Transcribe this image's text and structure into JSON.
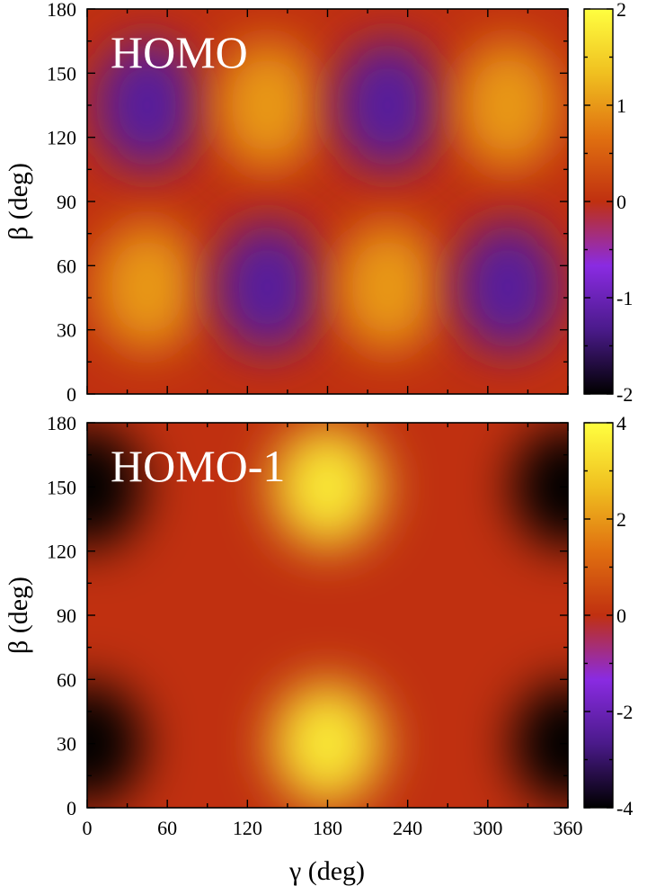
{
  "chart_data": [
    {
      "type": "heatmap",
      "title": "HOMO",
      "xlabel": "",
      "ylabel": "β  (deg)",
      "xlim": [
        0,
        360
      ],
      "ylim": [
        0,
        180
      ],
      "x_ticks": [
        "0",
        "60",
        "120",
        "180",
        "240",
        "300",
        "360"
      ],
      "y_ticks": [
        "0",
        "30",
        "60",
        "90",
        "120",
        "150",
        "180"
      ],
      "colorbar": {
        "range": [
          -2,
          2
        ],
        "ticks": [
          "-2",
          "-1",
          "0",
          "1",
          "2"
        ]
      },
      "colormap": [
        "#000000",
        "#4a1a8a",
        "#8a2be2",
        "#c03010",
        "#e07010",
        "#f0c020",
        "#ffff40"
      ],
      "features": [
        {
          "gamma": 45,
          "beta": 135,
          "value": -1.2
        },
        {
          "gamma": 135,
          "beta": 135,
          "value": 1.0
        },
        {
          "gamma": 225,
          "beta": 135,
          "value": -1.2
        },
        {
          "gamma": 315,
          "beta": 135,
          "value": 1.0
        },
        {
          "gamma": 45,
          "beta": 50,
          "value": 1.0
        },
        {
          "gamma": 135,
          "beta": 50,
          "value": -1.2
        },
        {
          "gamma": 225,
          "beta": 50,
          "value": 1.0
        },
        {
          "gamma": 315,
          "beta": 50,
          "value": -1.2
        }
      ]
    },
    {
      "type": "heatmap",
      "title": "HOMO-1",
      "xlabel": "γ  (deg)",
      "ylabel": "β  (deg)",
      "xlim": [
        0,
        360
      ],
      "ylim": [
        0,
        180
      ],
      "x_ticks": [
        "0",
        "60",
        "120",
        "180",
        "240",
        "300",
        "360"
      ],
      "y_ticks": [
        "0",
        "30",
        "60",
        "90",
        "120",
        "150",
        "180"
      ],
      "colorbar": {
        "range": [
          -4,
          4
        ],
        "ticks": [
          "-4",
          "-2",
          "0",
          "2",
          "4"
        ]
      },
      "colormap": [
        "#000000",
        "#4a1a8a",
        "#8a2be2",
        "#c03010",
        "#e07010",
        "#f0c020",
        "#ffff40"
      ],
      "features": [
        {
          "gamma": 0,
          "beta": 150,
          "value": -4.0
        },
        {
          "gamma": 360,
          "beta": 150,
          "value": -4.0
        },
        {
          "gamma": 0,
          "beta": 30,
          "value": -4.0
        },
        {
          "gamma": 360,
          "beta": 30,
          "value": -4.0
        },
        {
          "gamma": 180,
          "beta": 150,
          "value": 3.5
        },
        {
          "gamma": 180,
          "beta": 30,
          "value": 3.5
        }
      ]
    }
  ]
}
